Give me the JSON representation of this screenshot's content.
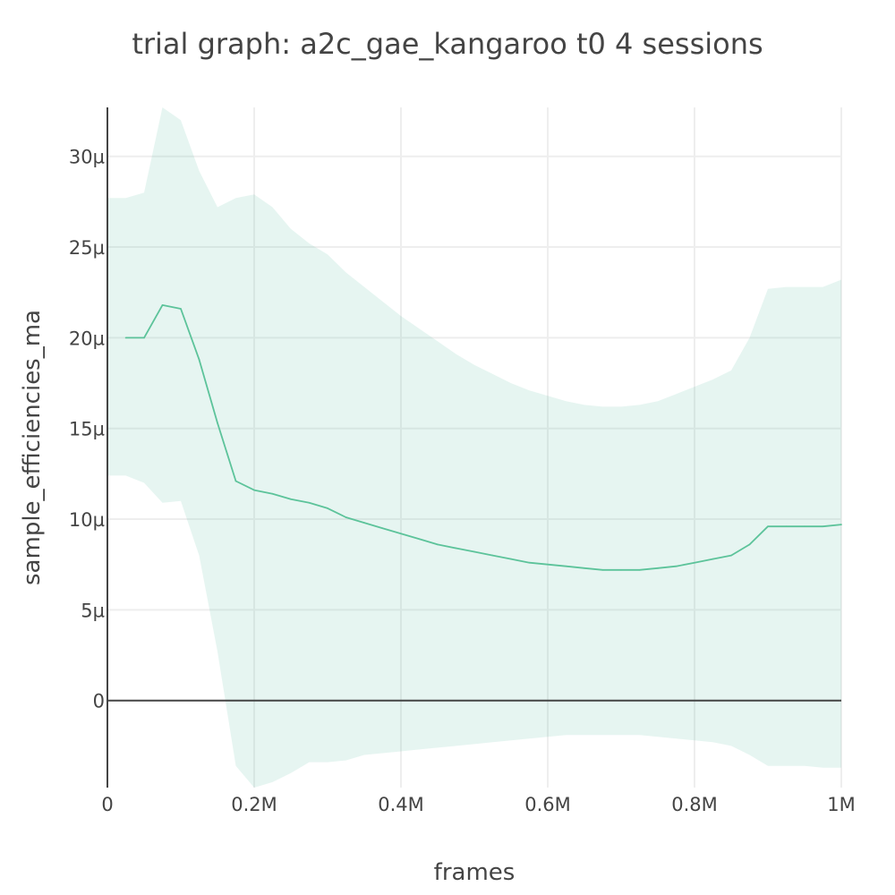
{
  "chart_data": {
    "type": "area",
    "title": "trial graph: a2c_gae_kangaroo t0 4 sessions",
    "xlabel": "frames",
    "ylabel": "sample_efficiencies_ma",
    "xlim": [
      0,
      1000000
    ],
    "ylim": [
      -4.8e-06,
      3.27e-05
    ],
    "x_ticks": [
      {
        "value": 0,
        "label": "0"
      },
      {
        "value": 200000,
        "label": "0.2M"
      },
      {
        "value": 400000,
        "label": "0.4M"
      },
      {
        "value": 600000,
        "label": "0.6M"
      },
      {
        "value": 800000,
        "label": "0.8M"
      },
      {
        "value": 1000000,
        "label": "1M"
      }
    ],
    "y_ticks": [
      {
        "value": 0,
        "label": "0"
      },
      {
        "value": 5e-06,
        "label": "5µ"
      },
      {
        "value": 1e-05,
        "label": "10µ"
      },
      {
        "value": 1.5e-05,
        "label": "15µ"
      },
      {
        "value": 2e-05,
        "label": "20µ"
      },
      {
        "value": 2.5e-05,
        "label": "25µ"
      },
      {
        "value": 3e-05,
        "label": "30µ"
      }
    ],
    "grid": true,
    "colors": {
      "line": "#5cc39a",
      "band": "rgba(102,194,165,0.16)",
      "zero_line": "#444444",
      "grid": "#eeeeee"
    },
    "x": [
      0,
      25000,
      50000,
      75000,
      100000,
      125000,
      150000,
      175000,
      200000,
      225000,
      250000,
      275000,
      300000,
      325000,
      350000,
      375000,
      400000,
      425000,
      450000,
      475000,
      500000,
      525000,
      550000,
      575000,
      600000,
      625000,
      650000,
      675000,
      700000,
      725000,
      750000,
      775000,
      800000,
      825000,
      850000,
      875000,
      900000,
      925000,
      950000,
      975000,
      1000000
    ],
    "series": [
      {
        "values": [
          null,
          2e-05,
          2e-05,
          2.18e-05,
          2.16e-05,
          1.88e-05,
          1.53e-05,
          1.21e-05,
          1.16e-05,
          1.14e-05,
          1.11e-05,
          1.09e-05,
          1.06e-05,
          1.01e-05,
          9.8e-06,
          9.5e-06,
          9.2e-06,
          8.9e-06,
          8.6e-06,
          8.4e-06,
          8.2e-06,
          8e-06,
          7.8e-06,
          7.6e-06,
          7.5e-06,
          7.4e-06,
          7.3e-06,
          7.2e-06,
          7.2e-06,
          7.2e-06,
          7.3e-06,
          7.4e-06,
          7.6e-06,
          7.8e-06,
          8e-06,
          8.6e-06,
          9.6e-06,
          9.6e-06,
          9.6e-06,
          9.6e-06,
          9.7e-06
        ],
        "upper": [
          2.77e-05,
          2.77e-05,
          2.8e-05,
          3.27e-05,
          3.2e-05,
          2.92e-05,
          2.72e-05,
          2.77e-05,
          2.79e-05,
          2.72e-05,
          2.6e-05,
          2.52e-05,
          2.46e-05,
          2.36e-05,
          2.28e-05,
          2.2e-05,
          2.12e-05,
          2.05e-05,
          1.98e-05,
          1.91e-05,
          1.85e-05,
          1.8e-05,
          1.75e-05,
          1.71e-05,
          1.68e-05,
          1.65e-05,
          1.63e-05,
          1.62e-05,
          1.62e-05,
          1.63e-05,
          1.65e-05,
          1.69e-05,
          1.73e-05,
          1.77e-05,
          1.82e-05,
          2e-05,
          2.27e-05,
          2.28e-05,
          2.28e-05,
          2.28e-05,
          2.32e-05
        ],
        "lower": [
          1.24e-05,
          1.24e-05,
          1.2e-05,
          1.09e-05,
          1.1e-05,
          8e-06,
          2.7e-06,
          -3.6e-06,
          -4.8e-06,
          -4.5e-06,
          -4e-06,
          -3.4e-06,
          -3.4e-06,
          -3.3e-06,
          -3e-06,
          -2.9e-06,
          -2.8e-06,
          -2.7e-06,
          -2.6e-06,
          -2.5e-06,
          -2.4e-06,
          -2.3e-06,
          -2.2e-06,
          -2.1e-06,
          -2e-06,
          -1.9e-06,
          -1.9e-06,
          -1.9e-06,
          -1.9e-06,
          -1.9e-06,
          -2e-06,
          -2.1e-06,
          -2.2e-06,
          -2.3e-06,
          -2.5e-06,
          -3e-06,
          -3.6e-06,
          -3.6e-06,
          -3.6e-06,
          -3.7e-06,
          -3.7e-06
        ]
      }
    ]
  }
}
